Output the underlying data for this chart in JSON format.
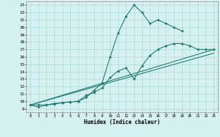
{
  "bg_color": "#d4f0f0",
  "line_color": "#1a7a6e",
  "xlabel": "Humidex (Indice chaleur)",
  "xlim": [
    -0.5,
    23.5
  ],
  "ylim": [
    8.5,
    23.5
  ],
  "s1x": [
    0,
    1,
    2,
    3,
    4,
    5,
    6,
    7,
    8,
    9,
    10,
    11,
    12,
    13,
    14,
    15,
    16,
    17,
    18,
    19
  ],
  "s1y": [
    9.5,
    9.2,
    9.5,
    9.6,
    9.8,
    9.9,
    10.0,
    10.5,
    11.5,
    12.5,
    16.0,
    19.2,
    21.5,
    23.0,
    22.0,
    20.5,
    21.0,
    20.5,
    20.0,
    19.5
  ],
  "s2x": [
    0,
    1,
    2,
    3,
    4,
    5,
    6,
    7,
    8,
    9,
    10,
    11,
    12,
    13,
    14,
    15,
    16,
    17,
    18,
    19,
    20,
    21,
    22,
    23
  ],
  "s2y": [
    9.5,
    9.5,
    9.5,
    9.7,
    9.8,
    9.9,
    10.0,
    10.8,
    11.2,
    11.8,
    13.2,
    14.1,
    14.5,
    13.0,
    14.8,
    16.2,
    17.0,
    17.5,
    17.8,
    17.8,
    17.5,
    17.0,
    17.0,
    17.0
  ],
  "s3x": [
    0,
    23
  ],
  "s3y": [
    9.5,
    17.0
  ],
  "s4x": [
    0,
    23
  ],
  "s4y": [
    9.5,
    16.5
  ],
  "grid_color": "#a0d0d0",
  "marker": "D",
  "markersize": 1.8,
  "linewidth": 0.8
}
